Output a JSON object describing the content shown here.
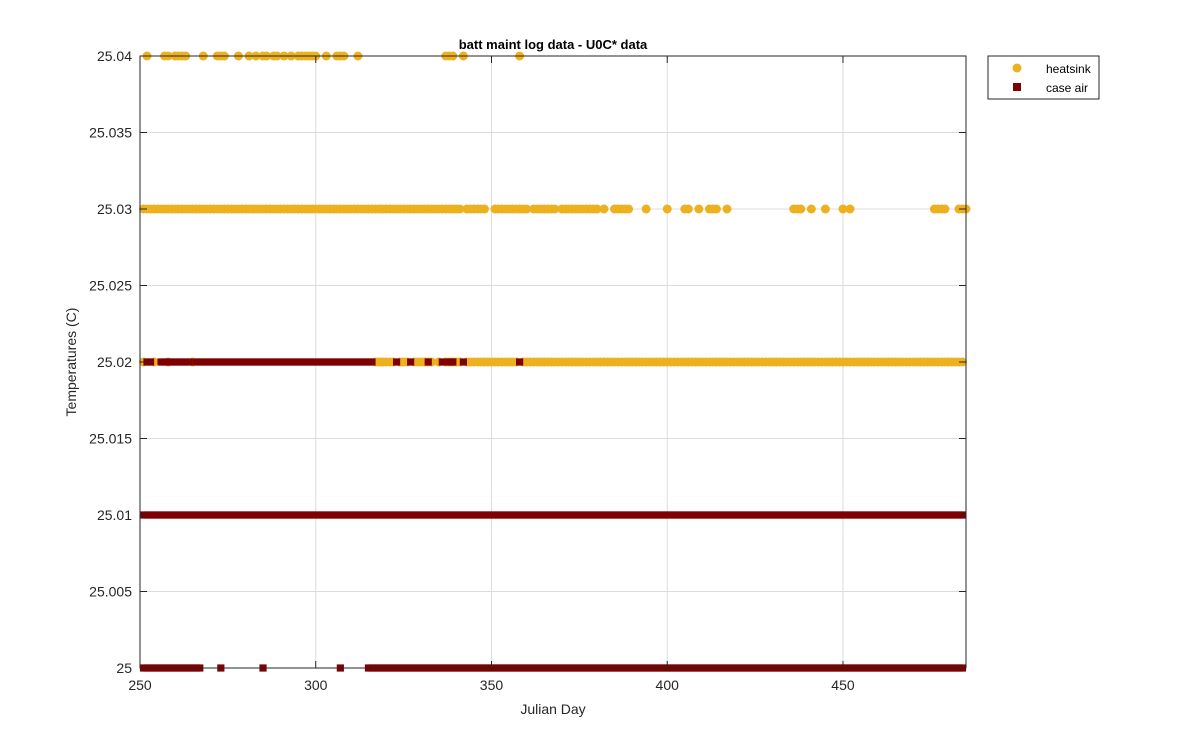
{
  "chart_data": {
    "type": "scatter",
    "title": "batt maint log data - U0C* data",
    "xlabel": "Julian Day",
    "ylabel": "Temperatures (C)",
    "xlim": [
      250,
      485
    ],
    "ylim": [
      25,
      25.04
    ],
    "xticks": [
      250,
      300,
      350,
      400,
      450
    ],
    "yticks": [
      25,
      25.005,
      25.01,
      25.015,
      25.02,
      25.025,
      25.03,
      25.035,
      25.04
    ],
    "x_tick_labels": [
      "250",
      "300",
      "350",
      "400",
      "450"
    ],
    "y_tick_labels": [
      "25",
      "25.005",
      "25.01",
      "25.015",
      "25.02",
      "25.025",
      "25.03",
      "25.035",
      "25.04"
    ],
    "grid": true,
    "legend_position": "outside-top-right",
    "series": [
      {
        "name": "heatsink",
        "marker": "circle",
        "color": "#EDB120",
        "points": [
          {
            "y": 25.04,
            "x": [
              252,
              257,
              258,
              260,
              261,
              262,
              263,
              268,
              272,
              273,
              274,
              278,
              281,
              283,
              285,
              286,
              288,
              289,
              291,
              293,
              295,
              296,
              297,
              298,
              299,
              300,
              303,
              306,
              307,
              308,
              312,
              337,
              338,
              339,
              342,
              358
            ]
          },
          {
            "y": 25.03,
            "x": [
              251,
              252,
              253,
              254,
              255,
              256,
              257,
              258,
              259,
              260,
              261,
              262,
              263,
              264,
              265,
              266,
              267,
              268,
              269,
              270,
              271,
              272,
              273,
              274,
              275,
              276,
              277,
              278,
              279,
              280,
              281,
              282,
              283,
              284,
              285,
              286,
              287,
              288,
              289,
              290,
              291,
              292,
              293,
              294,
              295,
              296,
              297,
              298,
              299,
              300,
              301,
              302,
              303,
              304,
              305,
              306,
              307,
              308,
              309,
              310,
              311,
              312,
              313,
              314,
              315,
              316,
              317,
              318,
              319,
              320,
              321,
              322,
              323,
              324,
              325,
              326,
              327,
              328,
              329,
              330,
              331,
              332,
              333,
              334,
              335,
              336,
              337,
              338,
              339,
              340,
              341,
              343,
              344,
              345,
              346,
              347,
              348,
              351,
              352,
              353,
              354,
              355,
              356,
              357,
              358,
              359,
              360,
              362,
              363,
              364,
              365,
              366,
              367,
              368,
              370,
              371,
              372,
              373,
              374,
              375,
              376,
              377,
              378,
              379,
              380,
              382,
              385,
              386,
              387,
              388,
              389,
              394,
              400,
              405,
              406,
              409,
              412,
              413,
              414,
              417,
              436,
              437,
              438,
              441,
              445,
              450,
              452,
              476,
              477,
              478,
              479,
              483,
              484,
              485
            ]
          },
          {
            "y": 25.02,
            "x": [
              251,
              254,
              258,
              265,
              317,
              318,
              319,
              320,
              321,
              322,
              324,
              325,
              326,
              328,
              329,
              330,
              331,
              332,
              333,
              335,
              337,
              338,
              339,
              340,
              341,
              343,
              344,
              345,
              346,
              347,
              348,
              349,
              350,
              351,
              352,
              353,
              354,
              355,
              356,
              357,
              359,
              360,
              361,
              362,
              363,
              364,
              365,
              366,
              367,
              368,
              369,
              370,
              371,
              372,
              373,
              374,
              375,
              376,
              377,
              378,
              379,
              380,
              381,
              382,
              383,
              384,
              385,
              386,
              387,
              388,
              389,
              390,
              391,
              392,
              393,
              394,
              395,
              396,
              397,
              398,
              399,
              400,
              401,
              402,
              403,
              404,
              405,
              406,
              407,
              408,
              409,
              410,
              411,
              412,
              413,
              414,
              415,
              416,
              417,
              418,
              419,
              420,
              421,
              422,
              423,
              424,
              425,
              426,
              427,
              428,
              429,
              430,
              431,
              432,
              433,
              434,
              435,
              436,
              437,
              438,
              439,
              440,
              441,
              442,
              443,
              444,
              445,
              446,
              447,
              448,
              449,
              450,
              451,
              452,
              453,
              454,
              455,
              456,
              457,
              458,
              459,
              460,
              461,
              462,
              463,
              464,
              465,
              466,
              467,
              468,
              469,
              470,
              471,
              472,
              473,
              474,
              475,
              476,
              477,
              478,
              479,
              480,
              481,
              482,
              483,
              484
            ]
          }
        ]
      },
      {
        "name": "case air",
        "marker": "square",
        "color": "#7E0000",
        "points": [
          {
            "y": 25.02,
            "x": [
              252,
              253,
              256,
              257,
              258,
              259,
              260,
              261,
              262,
              263,
              264,
              266,
              267,
              268,
              269,
              270,
              271,
              272,
              273,
              274,
              275,
              276,
              277,
              278,
              279,
              280,
              281,
              282,
              283,
              284,
              285,
              286,
              287,
              288,
              289,
              290,
              291,
              292,
              293,
              294,
              295,
              296,
              297,
              298,
              299,
              300,
              301,
              302,
              303,
              304,
              305,
              306,
              307,
              308,
              309,
              310,
              311,
              312,
              313,
              314,
              315,
              316,
              323,
              327,
              332,
              336,
              338,
              339,
              342,
              358
            ]
          },
          {
            "y": 25.01,
            "x": [
              251,
              252,
              253,
              254,
              255,
              256,
              257,
              258,
              259,
              260,
              261,
              262,
              263,
              264,
              265,
              266,
              267,
              268,
              269,
              270,
              271,
              272,
              273,
              274,
              275,
              276,
              277,
              278,
              279,
              280,
              281,
              282,
              283,
              284,
              285,
              286,
              287,
              288,
              289,
              290,
              291,
              292,
              293,
              294,
              295,
              296,
              297,
              298,
              299,
              300,
              301,
              302,
              303,
              304,
              305,
              306,
              307,
              308,
              309,
              310,
              311,
              312,
              313,
              314,
              315,
              316,
              317,
              318,
              319,
              320,
              321,
              322,
              323,
              324,
              325,
              326,
              327,
              328,
              329,
              330,
              331,
              332,
              333,
              334,
              335,
              336,
              337,
              338,
              339,
              340,
              341,
              342,
              343,
              344,
              345,
              346,
              347,
              348,
              349,
              350,
              351,
              352,
              353,
              354,
              355,
              356,
              357,
              358,
              359,
              360,
              361,
              362,
              363,
              364,
              365,
              366,
              367,
              368,
              369,
              370,
              371,
              372,
              373,
              374,
              375,
              376,
              377,
              378,
              379,
              380,
              381,
              382,
              383,
              384,
              385,
              386,
              387,
              388,
              389,
              390,
              391,
              392,
              393,
              394,
              395,
              396,
              397,
              398,
              399,
              400,
              401,
              402,
              403,
              404,
              405,
              406,
              407,
              408,
              409,
              410,
              411,
              412,
              413,
              414,
              415,
              416,
              417,
              418,
              419,
              420,
              421,
              422,
              423,
              424,
              425,
              426,
              427,
              428,
              429,
              430,
              431,
              432,
              433,
              434,
              435,
              436,
              437,
              438,
              439,
              440,
              441,
              442,
              443,
              444,
              445,
              446,
              447,
              448,
              449,
              450,
              451,
              452,
              453,
              454,
              455,
              456,
              457,
              458,
              459,
              460,
              461,
              462,
              463,
              464,
              465,
              466,
              467,
              468,
              469,
              470,
              471,
              472,
              473,
              474,
              475,
              476,
              477,
              478,
              479,
              480,
              481,
              482,
              483,
              484
            ]
          },
          {
            "y": 25.0,
            "x": [
              251,
              252,
              253,
              254,
              255,
              256,
              257,
              258,
              259,
              260,
              261,
              262,
              263,
              264,
              265,
              266,
              267,
              273,
              285,
              307,
              315,
              316,
              317,
              318,
              319,
              320,
              321,
              322,
              323,
              324,
              325,
              326,
              327,
              328,
              329,
              330,
              331,
              332,
              333,
              334,
              335,
              336,
              337,
              338,
              339,
              340,
              341,
              342,
              343,
              344,
              345,
              346,
              347,
              348,
              349,
              350,
              351,
              352,
              353,
              354,
              355,
              356,
              357,
              358,
              359,
              360,
              361,
              362,
              363,
              364,
              365,
              366,
              367,
              368,
              369,
              370,
              371,
              372,
              373,
              374,
              375,
              376,
              377,
              378,
              379,
              380,
              381,
              382,
              383,
              384,
              385,
              386,
              387,
              388,
              389,
              390,
              391,
              392,
              393,
              394,
              395,
              396,
              397,
              398,
              399,
              400,
              401,
              402,
              403,
              404,
              405,
              406,
              407,
              408,
              409,
              410,
              411,
              412,
              413,
              414,
              415,
              416,
              417,
              418,
              419,
              420,
              421,
              422,
              423,
              424,
              425,
              426,
              427,
              428,
              429,
              430,
              431,
              432,
              433,
              434,
              435,
              436,
              437,
              438,
              439,
              440,
              441,
              442,
              443,
              444,
              445,
              446,
              447,
              448,
              449,
              450,
              451,
              452,
              453,
              454,
              455,
              456,
              457,
              458,
              459,
              460,
              461,
              462,
              463,
              464,
              465,
              466,
              467,
              468,
              469,
              470,
              471,
              472,
              473,
              474,
              475,
              476,
              477,
              478,
              479,
              480,
              481,
              482,
              483,
              484
            ]
          }
        ]
      }
    ]
  }
}
